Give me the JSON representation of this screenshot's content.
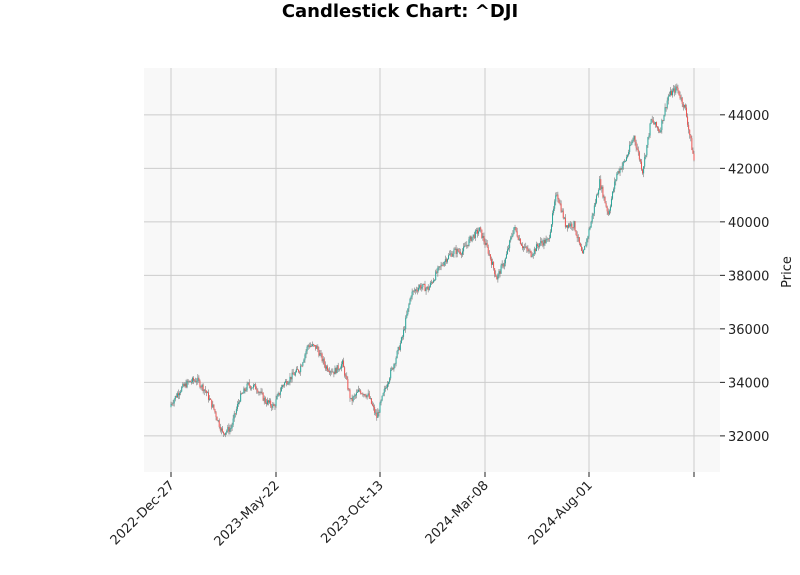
{
  "chart_data": {
    "type": "candlestick",
    "title": "Candlestick Chart: ^DJI",
    "xlabel": "",
    "ylabel": "Price",
    "ylim": [
      30650,
      45750
    ],
    "y_ticks": [
      32000,
      34000,
      36000,
      38000,
      40000,
      42000,
      44000
    ],
    "y_axis_side": "right",
    "x_tick_labels": [
      "2022-Dec-27",
      "2023-May-22",
      "2023-Oct-13",
      "2024-Mar-08",
      "2024-Aug-01",
      ""
    ],
    "grid": true,
    "colors": {
      "up": "#26a69a",
      "down": "#ef5350",
      "background": "#f8f8f8",
      "grid": "#cccccc"
    },
    "series": [
      {
        "x": "2022-Dec-27",
        "close": 33200
      },
      {
        "x": "2023-Jan-10",
        "close": 33700
      },
      {
        "x": "2023-Jan-25",
        "close": 34000
      },
      {
        "x": "2023-Feb-08",
        "close": 34100
      },
      {
        "x": "2023-Feb-22",
        "close": 33700
      },
      {
        "x": "2023-Mar-09",
        "close": 33000
      },
      {
        "x": "2023-Mar-16",
        "close": 32100
      },
      {
        "x": "2023-Mar-24",
        "close": 32300
      },
      {
        "x": "2023-Apr-06",
        "close": 33400
      },
      {
        "x": "2023-Apr-20",
        "close": 33900
      },
      {
        "x": "2023-May-04",
        "close": 33800
      },
      {
        "x": "2023-May-22",
        "close": 33300
      },
      {
        "x": "2023-Jun-01",
        "close": 33100
      },
      {
        "x": "2023-Jun-15",
        "close": 33900
      },
      {
        "x": "2023-Jun-28",
        "close": 34200
      },
      {
        "x": "2023-Jul-12",
        "close": 34500
      },
      {
        "x": "2023-Jul-26",
        "close": 35400
      },
      {
        "x": "2023-Aug-09",
        "close": 35300
      },
      {
        "x": "2023-Aug-23",
        "close": 34600
      },
      {
        "x": "2023-Sep-06",
        "close": 34400
      },
      {
        "x": "2023-Sep-20",
        "close": 34700
      },
      {
        "x": "2023-Oct-04",
        "close": 33300
      },
      {
        "x": "2023-Oct-13",
        "close": 33700
      },
      {
        "x": "2023-Oct-20",
        "close": 33500
      },
      {
        "x": "2023-Oct-27",
        "close": 32700
      },
      {
        "x": "2023-Nov-03",
        "close": 33800
      },
      {
        "x": "2023-Nov-17",
        "close": 34700
      },
      {
        "x": "2023-Dec-01",
        "close": 35700
      },
      {
        "x": "2023-Dec-15",
        "close": 37300
      },
      {
        "x": "2023-Dec-29",
        "close": 37600
      },
      {
        "x": "2024-Jan-12",
        "close": 37500
      },
      {
        "x": "2024-Jan-26",
        "close": 38100
      },
      {
        "x": "2024-Feb-09",
        "close": 38600
      },
      {
        "x": "2024-Feb-23",
        "close": 38900
      },
      {
        "x": "2024-Mar-08",
        "close": 38900
      },
      {
        "x": "2024-Mar-22",
        "close": 39400
      },
      {
        "x": "2024-Mar-28",
        "close": 39700
      },
      {
        "x": "2024-Apr-05",
        "close": 38900
      },
      {
        "x": "2024-Apr-19",
        "close": 37900
      },
      {
        "x": "2024-May-03",
        "close": 38600
      },
      {
        "x": "2024-May-15",
        "close": 39800
      },
      {
        "x": "2024-May-24",
        "close": 39100
      },
      {
        "x": "2024-Jun-07",
        "close": 38800
      },
      {
        "x": "2024-Jun-21",
        "close": 39200
      },
      {
        "x": "2024-Jul-05",
        "close": 39300
      },
      {
        "x": "2024-Jul-17",
        "close": 41100
      },
      {
        "x": "2024-Jul-24",
        "close": 39900
      },
      {
        "x": "2024-Aug-01",
        "close": 39900
      },
      {
        "x": "2024-Aug-05",
        "close": 38700
      },
      {
        "x": "2024-Aug-16",
        "close": 40000
      },
      {
        "x": "2024-Aug-30",
        "close": 41500
      },
      {
        "x": "2024-Sep-06",
        "close": 40300
      },
      {
        "x": "2024-Sep-20",
        "close": 41800
      },
      {
        "x": "2024-Oct-04",
        "close": 42300
      },
      {
        "x": "2024-Oct-18",
        "close": 43200
      },
      {
        "x": "2024-Nov-01",
        "close": 41900
      },
      {
        "x": "2024-Nov-08",
        "close": 43800
      },
      {
        "x": "2024-Nov-15",
        "close": 43400
      },
      {
        "x": "2024-Nov-25",
        "close": 44700
      },
      {
        "x": "2024-Dec-04",
        "close": 45000
      },
      {
        "x": "2024-Dec-11",
        "close": 44200
      },
      {
        "x": "2024-Dec-18",
        "close": 42300
      }
    ]
  }
}
